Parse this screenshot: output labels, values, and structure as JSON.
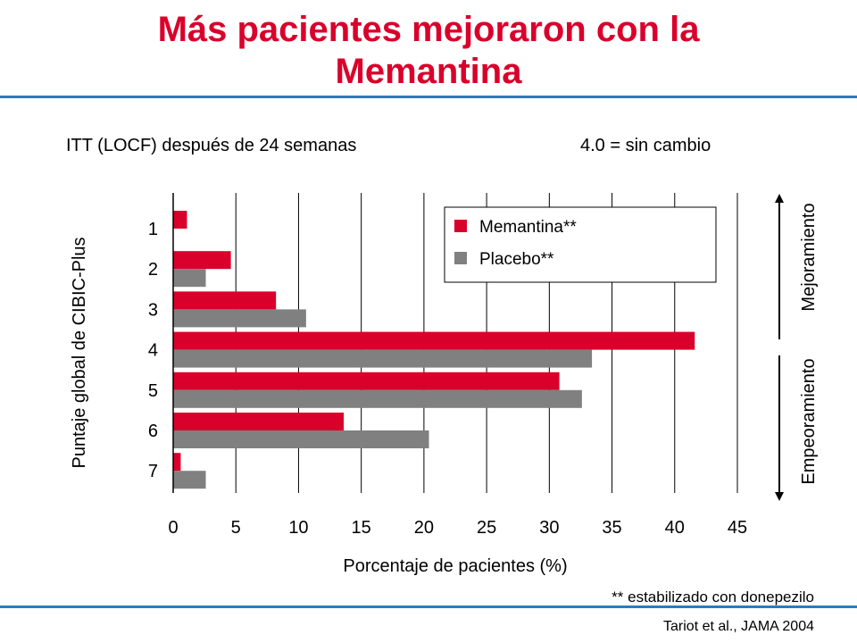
{
  "slide": {
    "title_line1": "Más pacientes mejoraron con la",
    "title_line2": "Memantina",
    "subtitle_left": "ITT (LOCF) después de 24 semanas",
    "subtitle_right": "4.0 = sin cambio",
    "footnote": "** estabilizado con donepezilo",
    "citation": "Tariot et al., JAMA 2004",
    "colors": {
      "title": "#d9002b",
      "rule": "#2b7bbd"
    }
  },
  "chart_data": {
    "type": "bar",
    "orientation": "horizontal",
    "categories": [
      "1",
      "2",
      "3",
      "4",
      "5",
      "6",
      "7"
    ],
    "series": [
      {
        "name": "Memantina**",
        "color": "#d9002b",
        "values": [
          1.1,
          4.6,
          8.2,
          41.6,
          30.8,
          13.6,
          0.6
        ]
      },
      {
        "name": "Placebo**",
        "color": "#808080",
        "values": [
          0,
          2.6,
          10.6,
          33.4,
          32.6,
          20.4,
          2.6
        ]
      }
    ],
    "xlabel": "Porcentaje de pacientes (%)",
    "ylabel": "Puntaje global de CIBIC-Plus",
    "xlim": [
      0,
      45
    ],
    "xticks": [
      "0",
      "5",
      "10",
      "15",
      "20",
      "25",
      "30",
      "35",
      "40",
      "45"
    ],
    "grid": true,
    "legend_position": "top-right",
    "annotations": [
      {
        "text": "Mejoramiento",
        "direction": "up"
      },
      {
        "text": "Empeoramiento",
        "direction": "down"
      }
    ]
  }
}
